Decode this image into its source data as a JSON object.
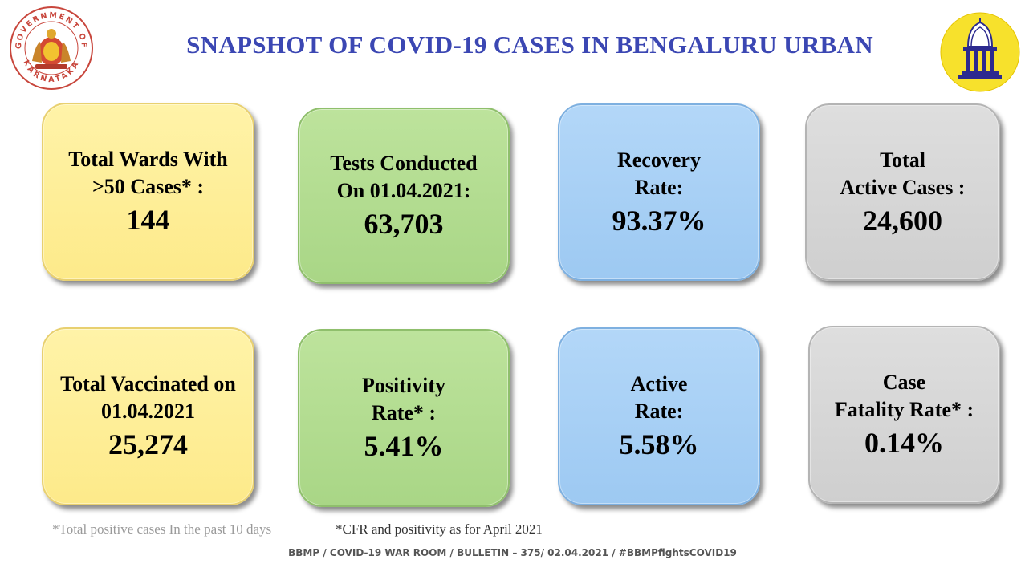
{
  "header": {
    "title": "SNAPSHOT OF COVID-19 CASES IN BENGALURU URBAN",
    "left_logo_text": "GOVERNMENT OF KARNATAKA",
    "left_logo_icon": "karnataka-emblem-icon",
    "right_logo_icon": "bbmp-emblem-icon"
  },
  "cards": [
    {
      "label1": "Total Wards With",
      "label2": ">50 Cases* :",
      "value": "144",
      "color": "#fdea8a"
    },
    {
      "label1": "Tests Conducted",
      "label2": "On 01.04.2021:",
      "value": "63,703",
      "color": "#a9d686"
    },
    {
      "label1": "Recovery",
      "label2": "Rate:",
      "value": "93.37%",
      "color": "#9dc9f2"
    },
    {
      "label1": "Total",
      "label2": "Active Cases :",
      "value": "24,600",
      "color": "#cfcfcf"
    },
    {
      "label1": "Total Vaccinated on",
      "label2": "01.04.2021",
      "value": "25,274",
      "color": "#fdea8a"
    },
    {
      "label1": "Positivity",
      "label2": "Rate* :",
      "value": "5.41%",
      "color": "#a9d686"
    },
    {
      "label1": "Active",
      "label2": "Rate:",
      "value": "5.58%",
      "color": "#9dc9f2"
    },
    {
      "label1": "Case",
      "label2": "Fatality Rate* :",
      "value": "0.14%",
      "color": "#cfcfcf"
    }
  ],
  "footnotes": {
    "note1": "*Total positive cases In the past 10 days",
    "note2": "*CFR and positivity as for April 2021"
  },
  "bulletin": "BBMP / COVID-19 WAR ROOM / BULLETIN – 375/ 02.04.2021 / #BBMPfightsCOVID19"
}
